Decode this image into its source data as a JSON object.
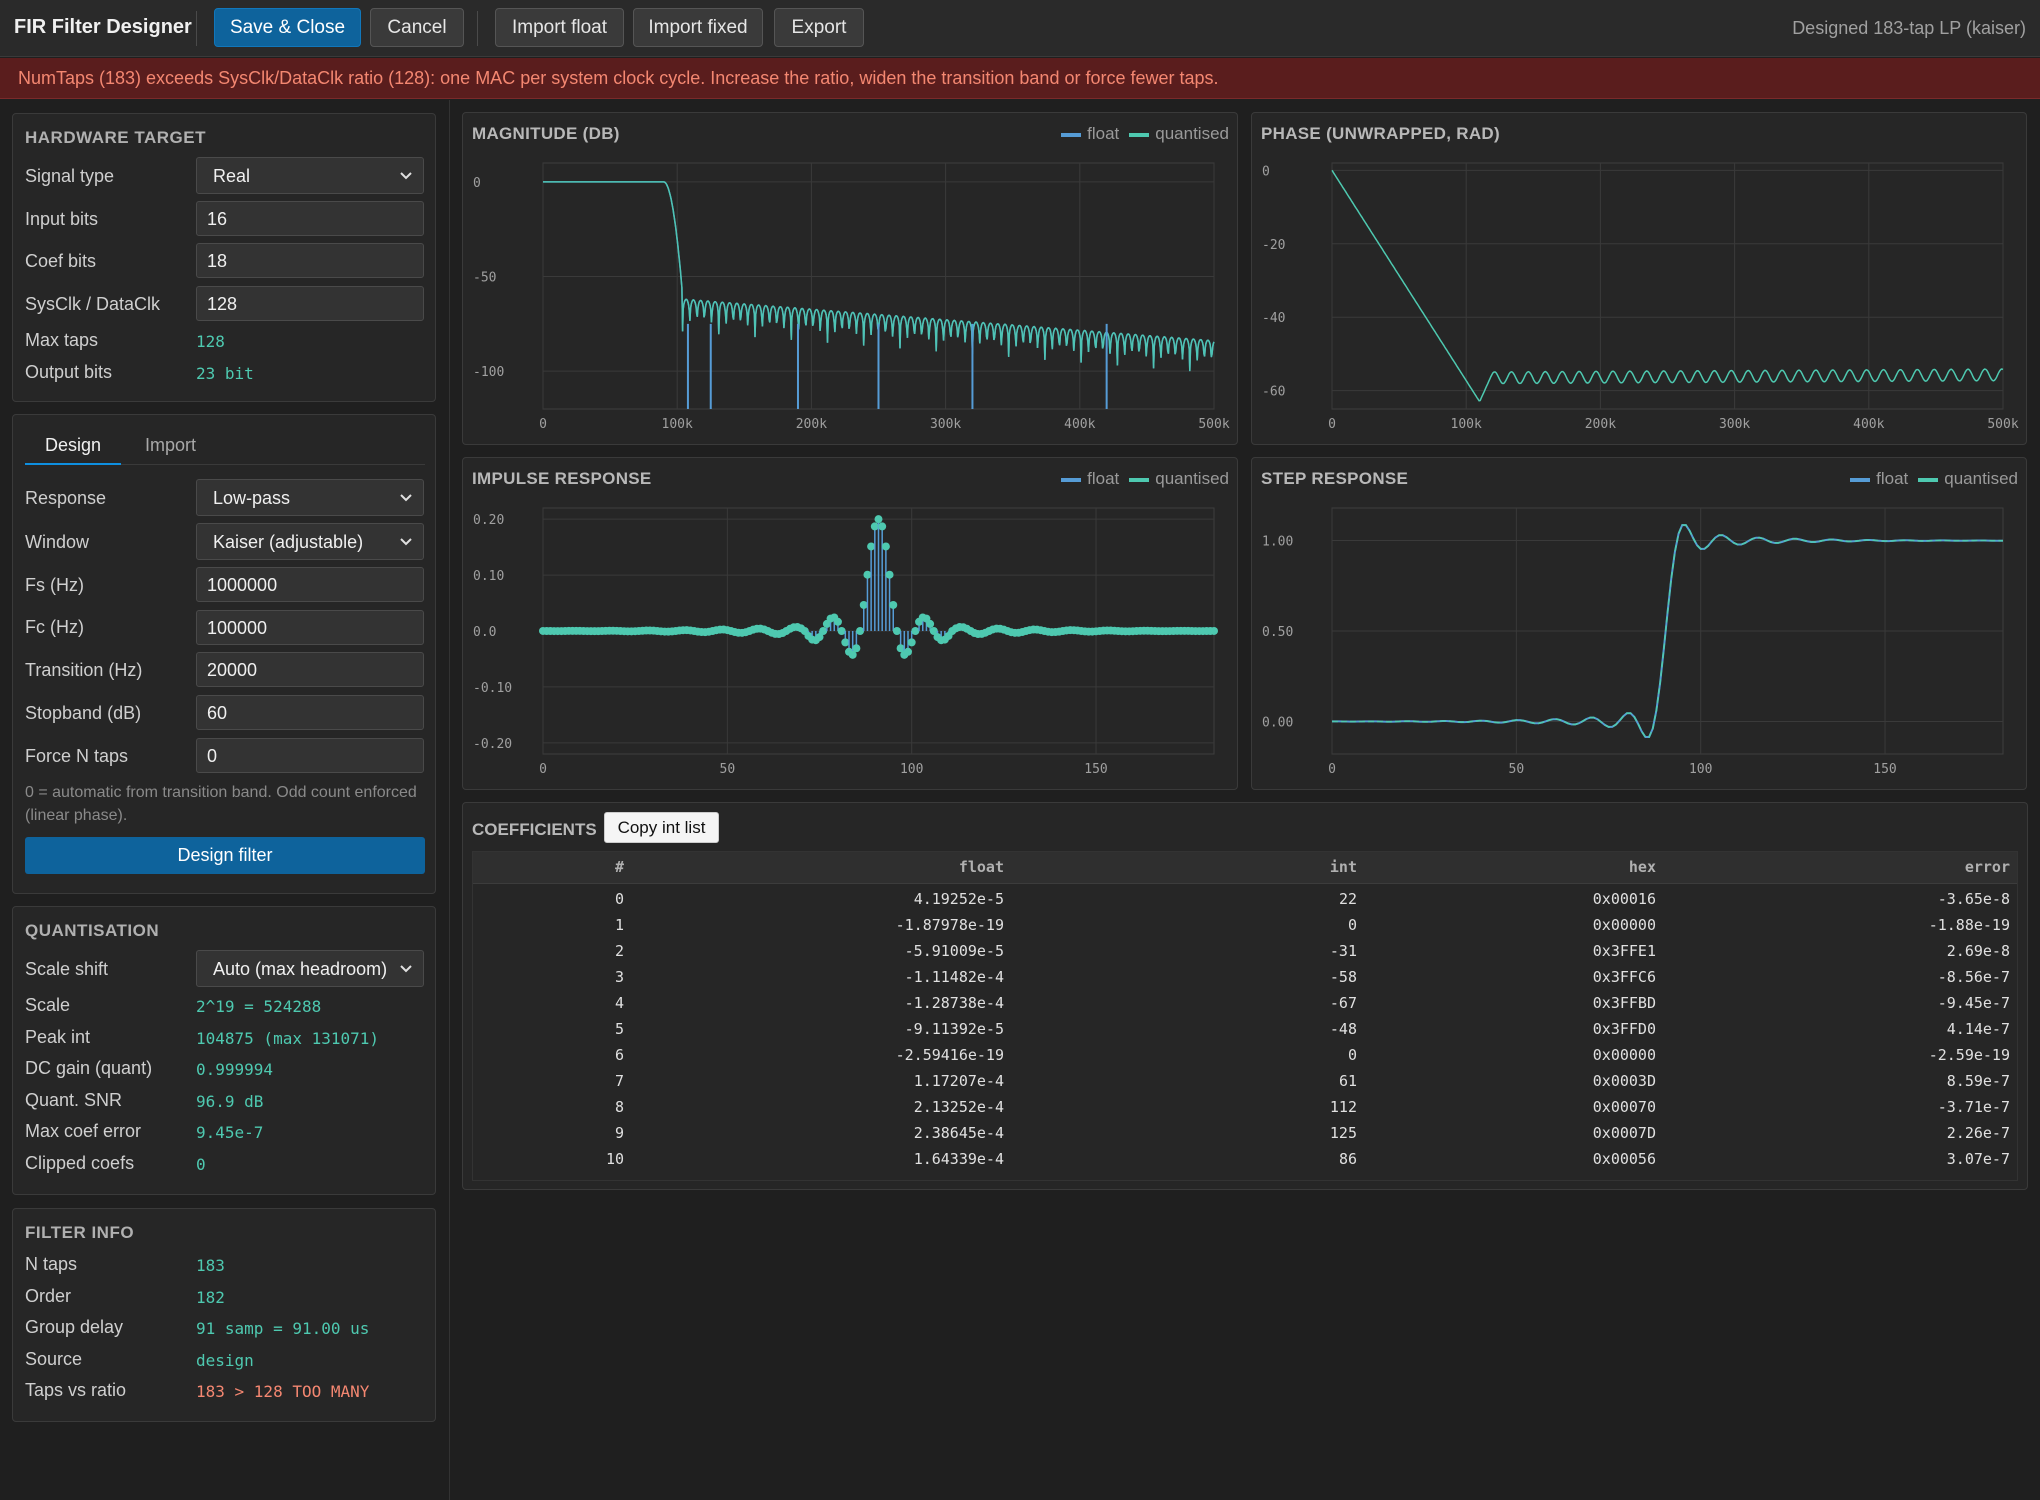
{
  "app": {
    "title": "FIR Filter Designer",
    "status": "Designed 183-tap LP (kaiser)"
  },
  "toolbar": {
    "save_close": "Save & Close",
    "cancel": "Cancel",
    "import_float": "Import float",
    "import_fixed": "Import fixed",
    "export": "Export"
  },
  "error": {
    "message": "NumTaps (183) exceeds SysClk/DataClk ratio (128): one MAC per system clock cycle. Increase the ratio, widen the transition band or force fewer taps."
  },
  "hardware": {
    "title": "HARDWARE TARGET",
    "signal_type_label": "Signal type",
    "signal_type": "Real",
    "input_bits_label": "Input bits",
    "input_bits": "16",
    "coef_bits_label": "Coef bits",
    "coef_bits": "18",
    "ratio_label": "SysClk / DataClk",
    "ratio": "128",
    "max_taps_label": "Max taps",
    "max_taps": "128",
    "output_bits_label": "Output bits",
    "output_bits": "23 bit"
  },
  "design": {
    "tab_design": "Design",
    "tab_import": "Import",
    "response_label": "Response",
    "response": "Low-pass",
    "window_label": "Window",
    "window": "Kaiser (adjustable)",
    "fs_label": "Fs (Hz)",
    "fs": "1000000",
    "fc_label": "Fc (Hz)",
    "fc": "100000",
    "transition_label": "Transition (Hz)",
    "transition": "20000",
    "stopband_label": "Stopband (dB)",
    "stopband": "60",
    "force_label": "Force N taps",
    "force": "0",
    "hint": "0 = automatic from transition band. Odd count enforced (linear phase).",
    "button": "Design filter"
  },
  "quant": {
    "title": "QUANTISATION",
    "scale_shift_label": "Scale shift",
    "scale_shift": "Auto (max headroom)",
    "scale_label": "Scale",
    "scale": "2^19 = 524288",
    "peak_label": "Peak int",
    "peak": "104875 (max 131071)",
    "dc_label": "DC gain (quant)",
    "dc": "0.999994",
    "snr_label": "Quant. SNR",
    "snr": "96.9 dB",
    "maxerr_label": "Max coef error",
    "maxerr": "9.45e-7",
    "clipped_label": "Clipped coefs",
    "clipped": "0"
  },
  "info": {
    "title": "FILTER INFO",
    "ntaps_label": "N taps",
    "ntaps": "183",
    "order_label": "Order",
    "order": "182",
    "delay_label": "Group delay",
    "delay": "91 samp = 91.00 us",
    "source_label": "Source",
    "source": "design",
    "ratio_label": "Taps vs ratio",
    "ratio": "183 > 128 TOO MANY"
  },
  "legend": {
    "float": "float",
    "quantised": "quantised"
  },
  "colors": {
    "float": "#569cd6",
    "quantised": "#4ec9b0",
    "accent": "#0e639c",
    "error": "#f48771"
  },
  "chart_data": [
    {
      "id": "magnitude",
      "type": "line",
      "title": "MAGNITUDE (DB)",
      "xticks": [
        "0",
        "100k",
        "200k",
        "300k",
        "400k",
        "500k"
      ],
      "yticks": [
        "0",
        "-50",
        "-100"
      ],
      "xlim": [
        0,
        500000
      ],
      "ylim": [
        -120,
        10
      ],
      "series": [
        {
          "name": "float",
          "x": [
            0,
            90000,
            100000,
            108000,
            110000,
            150000,
            200000,
            300000,
            400000,
            500000
          ],
          "y": [
            0,
            0,
            -6,
            -40,
            -65,
            -72,
            -78,
            -84,
            -88,
            -90
          ]
        },
        {
          "name": "quantised",
          "x": [
            0,
            90000,
            100000,
            108000,
            110000,
            150000,
            200000,
            300000,
            400000,
            500000
          ],
          "y": [
            0,
            0,
            -6,
            -40,
            -65,
            -72,
            -78,
            -84,
            -88,
            -90
          ]
        }
      ],
      "grid": true,
      "legend": "top-right"
    },
    {
      "id": "phase",
      "type": "line",
      "title": "PHASE (UNWRAPPED, RAD)",
      "xticks": [
        "0",
        "100k",
        "200k",
        "300k",
        "400k",
        "500k"
      ],
      "yticks": [
        "0",
        "-20",
        "-40",
        "-60"
      ],
      "xlim": [
        0,
        500000
      ],
      "ylim": [
        -65,
        2
      ],
      "series": [
        {
          "name": "float",
          "x": [
            0,
            110000,
            120000,
            500000
          ],
          "y": [
            0,
            -63,
            -57,
            -56
          ]
        }
      ],
      "grid": true
    },
    {
      "id": "impulse",
      "type": "scatter",
      "title": "IMPULSE RESPONSE",
      "xticks": [
        "0",
        "50",
        "100",
        "150"
      ],
      "yticks": [
        "0.20",
        "0.10",
        "0.0",
        "-0.10",
        "-0.20"
      ],
      "xlim": [
        0,
        182
      ],
      "ylim": [
        -0.22,
        0.22
      ],
      "peak": 0.2,
      "center": 91,
      "series": [
        {
          "name": "float"
        },
        {
          "name": "quantised"
        }
      ],
      "grid": true,
      "legend": "top-right"
    },
    {
      "id": "step",
      "type": "line",
      "title": "STEP RESPONSE",
      "xticks": [
        "0",
        "50",
        "100",
        "150"
      ],
      "yticks": [
        "1.00",
        "0.50",
        "0.00"
      ],
      "xlim": [
        0,
        182
      ],
      "ylim": [
        -0.18,
        1.18
      ],
      "series": [
        {
          "name": "float"
        },
        {
          "name": "quantised"
        }
      ],
      "grid": true,
      "legend": "top-right"
    }
  ],
  "coefficients": {
    "title": "COEFFICIENTS",
    "copy": "Copy int list",
    "headers": [
      "#",
      "float",
      "int",
      "hex",
      "error"
    ],
    "rows": [
      [
        "0",
        "4.19252e-5",
        "22",
        "0x00016",
        "-3.65e-8"
      ],
      [
        "1",
        "-1.87978e-19",
        "0",
        "0x00000",
        "-1.88e-19"
      ],
      [
        "2",
        "-5.91009e-5",
        "-31",
        "0x3FFE1",
        "2.69e-8"
      ],
      [
        "3",
        "-1.11482e-4",
        "-58",
        "0x3FFC6",
        "-8.56e-7"
      ],
      [
        "4",
        "-1.28738e-4",
        "-67",
        "0x3FFBD",
        "-9.45e-7"
      ],
      [
        "5",
        "-9.11392e-5",
        "-48",
        "0x3FFD0",
        "4.14e-7"
      ],
      [
        "6",
        "-2.59416e-19",
        "0",
        "0x00000",
        "-2.59e-19"
      ],
      [
        "7",
        "1.17207e-4",
        "61",
        "0x0003D",
        "8.59e-7"
      ],
      [
        "8",
        "2.13252e-4",
        "112",
        "0x00070",
        "-3.71e-7"
      ],
      [
        "9",
        "2.38645e-4",
        "125",
        "0x0007D",
        "2.26e-7"
      ],
      [
        "10",
        "1.64339e-4",
        "86",
        "0x00056",
        "3.07e-7"
      ]
    ]
  }
}
